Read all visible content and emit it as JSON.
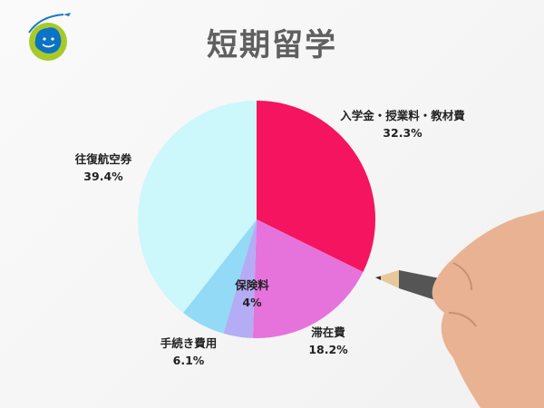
{
  "chart_data": {
    "type": "pie",
    "title": "短期留学",
    "start_angle": "top",
    "direction": "clockwise",
    "slices": [
      {
        "label": "入学金・授業料・教材費",
        "value": 32.3,
        "display": "32.3%",
        "color": "#f5145f"
      },
      {
        "label": "滞在費",
        "value": 18.2,
        "display": "18.2%",
        "color": "#e673dc"
      },
      {
        "label": "保険料",
        "value": 4,
        "display": "4%",
        "color": "#b4acf5"
      },
      {
        "label": "手続き費用",
        "value": 6.1,
        "display": "6.1%",
        "color": "#92daf5"
      },
      {
        "label": "往復航空券",
        "value": 39.4,
        "display": "39.4%",
        "color": "#ccf7fb"
      }
    ]
  },
  "logo": {
    "icon": "smiling-globe-with-airplane-icon",
    "colors": [
      "#0072c6",
      "#a8c92b"
    ]
  }
}
